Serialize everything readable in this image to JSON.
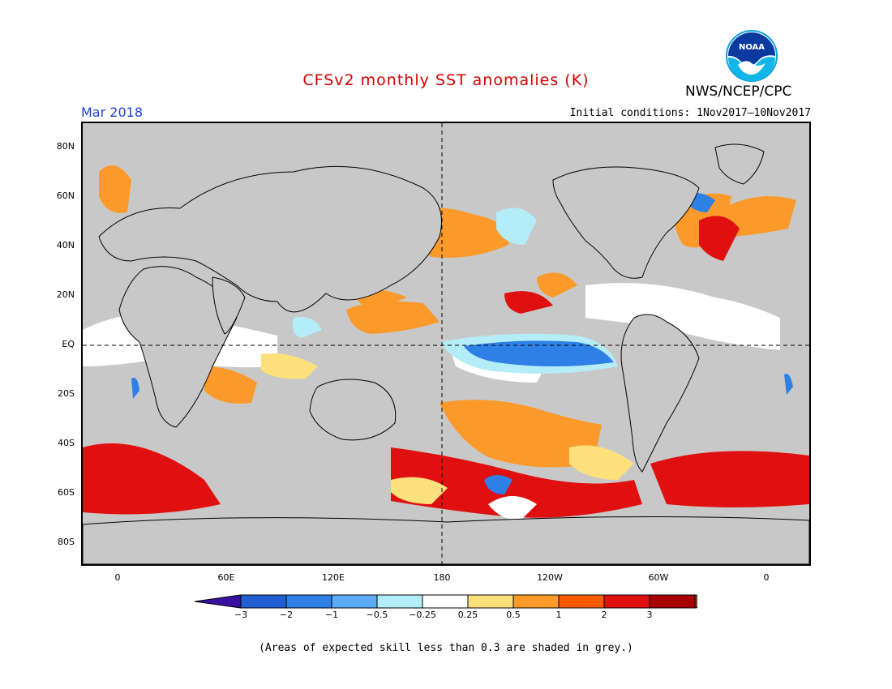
{
  "header": {
    "title": "CFSv2 monthly SST anomalies (K)",
    "agency": "NWS/NCEP/CPC",
    "logo_text": "NOAA",
    "valid_month": "Mar 2018",
    "initial_conditions": "Initial conditions: 1Nov2017–10Nov2017"
  },
  "map": {
    "lat_labels": [
      "80N",
      "60N",
      "40N",
      "20N",
      "EQ",
      "20S",
      "40S",
      "60S",
      "80S"
    ],
    "lon_labels": [
      "0",
      "60E",
      "120E",
      "180",
      "120W",
      "60W",
      "0"
    ],
    "skill_mask_color": "#c8c8c8"
  },
  "colorbar": {
    "ticks": [
      "−3",
      "−2",
      "−1",
      "−0.5",
      "−0.25",
      "0.25",
      "0.5",
      "1",
      "2",
      "3"
    ],
    "colors": [
      "#3a10a0",
      "#1f5fd2",
      "#2f80e6",
      "#5aaaf5",
      "#b4ecf8",
      "#ffffff",
      "#fce07c",
      "#fb9a2a",
      "#fa5a00",
      "#e01010",
      "#a80000",
      "#6e4630"
    ]
  },
  "footnote": "(Areas of expected skill less than 0.3 are shaded in grey.)"
}
